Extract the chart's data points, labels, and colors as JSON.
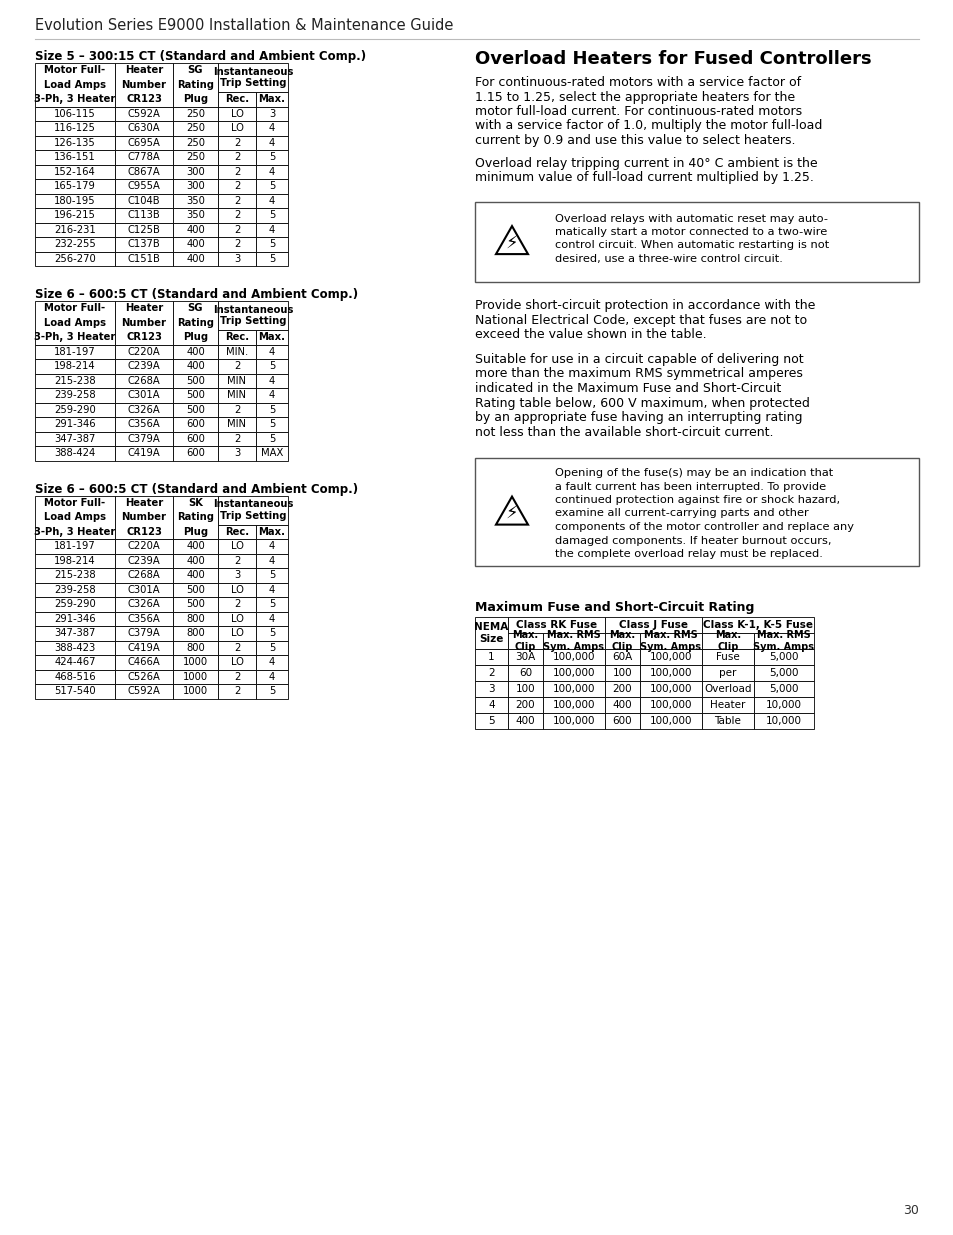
{
  "page_title": "Evolution Series E9000 Installation & Maintenance Guide",
  "page_number": "30",
  "background_color": "#ffffff",
  "table1_title": "Size 5 – 300:15 CT (Standard and Ambient Comp.)",
  "table1_col3": "SG",
  "table1_data": [
    [
      "106-115",
      "C592A",
      "250",
      "LO",
      "3"
    ],
    [
      "116-125",
      "C630A",
      "250",
      "LO",
      "4"
    ],
    [
      "126-135",
      "C695A",
      "250",
      "2",
      "4"
    ],
    [
      "136-151",
      "C778A",
      "250",
      "2",
      "5"
    ],
    [
      "152-164",
      "C867A",
      "300",
      "2",
      "4"
    ],
    [
      "165-179",
      "C955A",
      "300",
      "2",
      "5"
    ],
    [
      "180-195",
      "C104B",
      "350",
      "2",
      "4"
    ],
    [
      "196-215",
      "C113B",
      "350",
      "2",
      "5"
    ],
    [
      "216-231",
      "C125B",
      "400",
      "2",
      "4"
    ],
    [
      "232-255",
      "C137B",
      "400",
      "2",
      "5"
    ],
    [
      "256-270",
      "C151B",
      "400",
      "3",
      "5"
    ]
  ],
  "table2_title": "Size 6 – 600:5 CT (Standard and Ambient Comp.)",
  "table2_col3": "SG",
  "table2_data": [
    [
      "181-197",
      "C220A",
      "400",
      "MIN.",
      "4"
    ],
    [
      "198-214",
      "C239A",
      "400",
      "2",
      "5"
    ],
    [
      "215-238",
      "C268A",
      "500",
      "MIN",
      "4"
    ],
    [
      "239-258",
      "C301A",
      "500",
      "MIN",
      "4"
    ],
    [
      "259-290",
      "C326A",
      "500",
      "2",
      "5"
    ],
    [
      "291-346",
      "C356A",
      "600",
      "MIN",
      "5"
    ],
    [
      "347-387",
      "C379A",
      "600",
      "2",
      "5"
    ],
    [
      "388-424",
      "C419A",
      "600",
      "3",
      "MAX"
    ]
  ],
  "table3_title": "Size 6 – 600:5 CT (Standard and Ambient Comp.)",
  "table3_col3": "SK",
  "table3_data": [
    [
      "181-197",
      "C220A",
      "400",
      "LO",
      "4"
    ],
    [
      "198-214",
      "C239A",
      "400",
      "2",
      "4"
    ],
    [
      "215-238",
      "C268A",
      "400",
      "3",
      "5"
    ],
    [
      "239-258",
      "C301A",
      "500",
      "LO",
      "4"
    ],
    [
      "259-290",
      "C326A",
      "500",
      "2",
      "5"
    ],
    [
      "291-346",
      "C356A",
      "800",
      "LO",
      "4"
    ],
    [
      "347-387",
      "C379A",
      "800",
      "LO",
      "5"
    ],
    [
      "388-423",
      "C419A",
      "800",
      "2",
      "5"
    ],
    [
      "424-467",
      "C466A",
      "1000",
      "LO",
      "4"
    ],
    [
      "468-516",
      "C526A",
      "1000",
      "2",
      "4"
    ],
    [
      "517-540",
      "C592A",
      "1000",
      "2",
      "5"
    ]
  ],
  "right_section_title": "Overload Heaters for Fused Controllers",
  "right_para1_lines": [
    "For continuous-rated motors with a service factor of",
    "1.15 to 1.25, select the appropriate heaters for the",
    "motor full-load current. For continuous-rated motors",
    "with a service factor of 1.0, multiply the motor full-load",
    "current by 0.9 and use this value to select heaters."
  ],
  "right_para2_lines": [
    "Overload relay tripping current in 40° C ambient is the",
    "minimum value of full-load current multiplied by 1.25."
  ],
  "right_note1_lines": [
    "Overload relays with automatic reset may auto-",
    "matically start a motor connected to a two-wire",
    "control circuit. When automatic restarting is not",
    "desired, use a three-wire control circuit."
  ],
  "right_para3_lines": [
    "Provide short-circuit protection in accordance with the",
    "National Electrical Code, except that fuses are not to",
    "exceed the value shown in the table."
  ],
  "right_para4_lines": [
    "Suitable for use in a circuit capable of delivering not",
    "more than the maximum RMS symmetrical amperes",
    "indicated in the Maximum Fuse and Short-Circuit",
    "Rating table below, 600 V maximum, when protected",
    "by an appropriate fuse having an interrupting rating",
    "not less than the available short-circuit current."
  ],
  "right_note2_lines": [
    "Opening of the fuse(s) may be an indication that",
    "a fault current has been interrupted. To provide",
    "continued protection against fire or shock hazard,",
    "examine all current-carrying parts and other",
    "components of the motor controller and replace any",
    "damaged components. If heater burnout occurs,",
    "the complete overload relay must be replaced."
  ],
  "fuse_table_title": "Maximum Fuse and Short-Circuit Rating",
  "fuse_table_col_groups": [
    "Class RK Fuse",
    "Class J Fuse",
    "Class K-1, K-5 Fuse"
  ],
  "fuse_table_data": [
    [
      "1",
      "30A",
      "100,000",
      "60A",
      "100,000",
      "Fuse",
      "5,000"
    ],
    [
      "2",
      "60",
      "100,000",
      "100",
      "100,000",
      "per",
      "5,000"
    ],
    [
      "3",
      "100",
      "100,000",
      "200",
      "100,000",
      "Overload",
      "5,000"
    ],
    [
      "4",
      "200",
      "100,000",
      "400",
      "100,000",
      "Heater",
      "10,000"
    ],
    [
      "5",
      "400",
      "100,000",
      "600",
      "100,000",
      "Table",
      "10,000"
    ]
  ]
}
